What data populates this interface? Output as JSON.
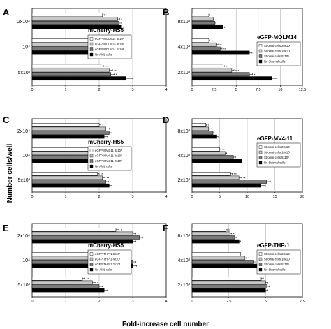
{
  "figure": {
    "y_axis_label": "Number cells/well",
    "x_axis_label": "Fold-increase cell number"
  },
  "colors": {
    "series_fills": [
      "#ffffff",
      "#c8c8c8",
      "#7a7a7a",
      "#000000"
    ],
    "stroke": "#000000",
    "grid": "#b0b0b0"
  },
  "chart_data": [
    {
      "panel": "A",
      "type": "bar",
      "orientation": "horizontal",
      "title": "mCherry-HS5",
      "categories": [
        "2x10⁴",
        "10⁴",
        "5x10³"
      ],
      "xlim": [
        0,
        4
      ],
      "ticks": [
        0,
        1,
        2,
        3,
        4
      ],
      "grid": true,
      "series": [
        {
          "name": "eGFP-MOLM14   8x10³",
          "values": [
            2.1,
            2.0,
            2.05
          ],
          "err": [
            0.05,
            0.05,
            0.08
          ],
          "ann": [
            "*",
            "**",
            "***"
          ]
        },
        {
          "name": "eGFP-MOLM14   4x10³",
          "values": [
            2.55,
            2.5,
            2.3
          ],
          "err": [
            0.06,
            0.08,
            0.1
          ],
          "ann": [
            "*",
            "**",
            "**"
          ]
        },
        {
          "name": "eGFP-MOLM14   2x10³",
          "values": [
            2.6,
            2.6,
            2.35
          ],
          "err": [
            0.07,
            0.08,
            0.1
          ],
          "ann": [
            "",
            "",
            "*"
          ]
        },
        {
          "name": "No AML cells",
          "values": [
            2.65,
            2.8,
            2.8
          ],
          "err": [
            0.08,
            0.1,
            0.2
          ],
          "ann": [
            "",
            "",
            ""
          ]
        }
      ]
    },
    {
      "panel": "B",
      "type": "bar",
      "orientation": "horizontal",
      "title": "eGFP-MOLM14",
      "categories": [
        "8x10³",
        "4x10³",
        "2x10³"
      ],
      "xlim": [
        0,
        12.5
      ],
      "ticks": [
        0,
        2.5,
        5,
        7.5,
        10,
        12.5
      ],
      "grid": true,
      "series": [
        {
          "name": "Stromal cells  20x10³",
          "values": [
            1.9,
            1.9,
            3.5
          ],
          "err": [
            0.1,
            0.1,
            0.2
          ],
          "ann": [
            "*",
            "***",
            "**"
          ]
        },
        {
          "name": "Stromal cells  10x10³",
          "values": [
            2.4,
            2.8,
            4.5
          ],
          "err": [
            0.1,
            0.15,
            0.25
          ],
          "ann": [
            "*",
            "**",
            "***"
          ]
        },
        {
          "name": "Stromal cells  5x10³",
          "values": [
            2.6,
            3.2,
            6.5
          ],
          "err": [
            0.15,
            0.2,
            0.35
          ],
          "ann": [
            "",
            "**",
            "*"
          ]
        },
        {
          "name": "No Stromal cells",
          "values": [
            3.5,
            6.5,
            9.0
          ],
          "err": [
            0.2,
            0.3,
            0.6
          ],
          "ann": [
            "",
            "",
            ""
          ]
        }
      ]
    },
    {
      "panel": "C",
      "type": "bar",
      "orientation": "horizontal",
      "title": "mCherry-HS5",
      "categories": [
        "2x10⁴",
        "10⁴",
        "5x10³"
      ],
      "xlim": [
        0,
        4
      ],
      "ticks": [
        0,
        1,
        2,
        3,
        4
      ],
      "grid": true,
      "series": [
        {
          "name": "eGFP-MV4-11   8x10³",
          "values": [
            2.0,
            1.95,
            1.95
          ],
          "err": [
            0.05,
            0.05,
            0.05
          ],
          "ann": [
            "*",
            "**",
            "**"
          ]
        },
        {
          "name": "eGFP-MV4-11   4x10³",
          "values": [
            2.2,
            2.2,
            2.1
          ],
          "err": [
            0.1,
            0.1,
            0.08
          ],
          "ann": [
            "",
            "**",
            "**"
          ]
        },
        {
          "name": "eGFP-MV4-11   2x10³",
          "values": [
            2.3,
            2.3,
            2.2
          ],
          "err": [
            0.08,
            0.08,
            0.08
          ],
          "ann": [
            "",
            "*",
            "*"
          ]
        },
        {
          "name": "No AML cells",
          "values": [
            2.15,
            2.65,
            2.3
          ],
          "err": [
            0.1,
            0.1,
            0.08
          ],
          "ann": [
            "",
            "",
            ""
          ]
        }
      ]
    },
    {
      "panel": "D",
      "type": "bar",
      "orientation": "horizontal",
      "title": "eGFP-MV4-11",
      "categories": [
        "8x10³",
        "4x10³",
        "2x10³"
      ],
      "xlim": [
        0,
        20
      ],
      "ticks": [
        0,
        5,
        10,
        15,
        20
      ],
      "grid": true,
      "series": [
        {
          "name": "Stromal cells 20x10³",
          "values": [
            2.5,
            5.0,
            7.0
          ],
          "err": [
            0.1,
            0.2,
            0.3
          ],
          "ann": [
            "*",
            "**",
            "***"
          ]
        },
        {
          "name": "Stromal cells 10x10³",
          "values": [
            3.0,
            6.0,
            8.5
          ],
          "err": [
            0.15,
            0.3,
            0.5
          ],
          "ann": [
            "*",
            "",
            "**"
          ]
        },
        {
          "name": "Stromal cells 5x10³",
          "values": [
            3.8,
            7.5,
            13.5
          ],
          "err": [
            0.2,
            0.4,
            0.7
          ],
          "ann": [
            "",
            "",
            ""
          ]
        },
        {
          "name": "No Stromal cells",
          "values": [
            4.5,
            9.0,
            12.5
          ],
          "err": [
            0.2,
            0.4,
            0.8
          ],
          "ann": [
            "",
            "",
            ""
          ]
        }
      ]
    },
    {
      "panel": "E",
      "type": "bar",
      "orientation": "horizontal",
      "title": "mCherry-HS5",
      "categories": [
        "2x10⁴",
        "10⁴",
        "5x10³"
      ],
      "xlim": [
        0,
        4
      ],
      "ticks": [
        0,
        1,
        2,
        3,
        4
      ],
      "grid": true,
      "series": [
        {
          "name": "eGFP-THP-1   8x10³",
          "values": [
            2.5,
            2.3,
            1.5
          ],
          "err": [
            0.1,
            0.08,
            0.08
          ],
          "ann": [
            "*",
            "**",
            "**"
          ]
        },
        {
          "name": "eGFP-THP-1   4x10³",
          "values": [
            3.0,
            2.8,
            1.8
          ],
          "err": [
            0.1,
            0.1,
            0.1
          ],
          "ann": [
            "*",
            "*",
            "*"
          ]
        },
        {
          "name": "eGFP-THP-1   2x10³",
          "values": [
            3.2,
            3.0,
            2.0
          ],
          "err": [
            0.1,
            0.1,
            0.1
          ],
          "ann": [
            "",
            "",
            ""
          ]
        },
        {
          "name": "No AML cells",
          "values": [
            3.0,
            3.0,
            2.15
          ],
          "err": [
            0.1,
            0.12,
            0.1
          ],
          "ann": [
            "",
            "",
            ""
          ]
        }
      ]
    },
    {
      "panel": "F",
      "type": "bar",
      "orientation": "horizontal",
      "title": "eGFP-THP-1",
      "categories": [
        "8x10³",
        "4x10³",
        "2x10³"
      ],
      "xlim": [
        0,
        7.5
      ],
      "ticks": [
        0,
        2.5,
        5,
        7.5
      ],
      "grid": true,
      "series": [
        {
          "name": "Stromal cells 20x10³",
          "values": [
            2.3,
            3.3,
            4.7
          ],
          "err": [
            0.08,
            0.1,
            0.15
          ],
          "ann": [
            "*",
            "*",
            ""
          ]
        },
        {
          "name": "Stromal cells 10x10³",
          "values": [
            2.6,
            3.6,
            5.0
          ],
          "err": [
            0.1,
            0.1,
            0.15
          ],
          "ann": [
            "*",
            "*",
            ""
          ]
        },
        {
          "name": "Stromal cells 5x10³",
          "values": [
            2.9,
            4.2,
            5.1
          ],
          "err": [
            0.1,
            0.15,
            0.15
          ],
          "ann": [
            "",
            "*",
            ""
          ]
        },
        {
          "name": "No Stromal cells",
          "values": [
            3.2,
            4.8,
            5.0
          ],
          "err": [
            0.1,
            0.2,
            0.15
          ],
          "ann": [
            "",
            "",
            ""
          ]
        }
      ]
    }
  ]
}
